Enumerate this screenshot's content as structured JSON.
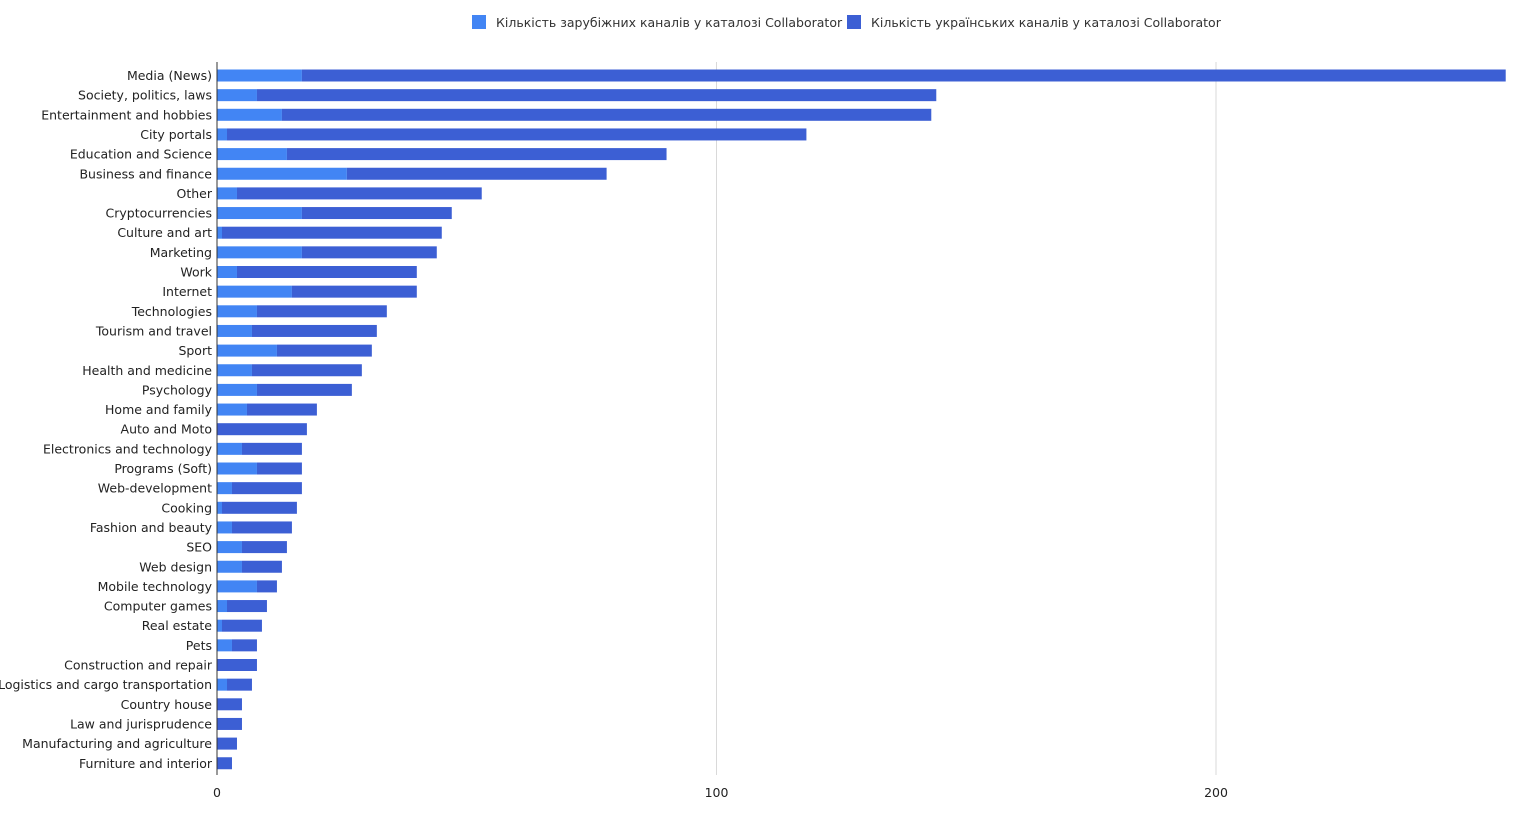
{
  "chart_data": {
    "type": "bar",
    "orientation": "horizontal",
    "stacked": true,
    "legend_position": "top",
    "grid": true,
    "xlim": [
      0,
      258
    ],
    "xticks": [
      0,
      100,
      200
    ],
    "categories": [
      "Media (News)",
      "Society, politics, laws",
      "Entertainment and hobbies",
      "City portals",
      "Education and Science",
      "Business and finance",
      "Other",
      "Cryptocurrencies",
      "Culture and art",
      "Marketing",
      "Work",
      "Internet",
      "Technologies",
      "Tourism and travel",
      "Sport",
      "Health and medicine",
      "Psychology",
      "Home and family",
      "Auto and Moto",
      "Electronics and technology",
      "Programs (Soft)",
      "Web-development",
      "Cooking",
      "Fashion and beauty",
      "SEO",
      "Web design",
      "Mobile technology",
      "Computer games",
      "Real estate",
      "Pets",
      "Construction and repair",
      "Logistics and cargo transportation",
      "Country house",
      "Law and jurisprudence",
      "Manufacturing and agriculture",
      "Furniture and interior"
    ],
    "series": [
      {
        "name": "Кількість зарубіжних каналів у каталозі Collaborator",
        "color": "#4285f4",
        "values": [
          17,
          8,
          13,
          2,
          14,
          26,
          4,
          17,
          1,
          17,
          4,
          15,
          8,
          7,
          12,
          7,
          8,
          6,
          0,
          5,
          8,
          3,
          1,
          3,
          5,
          5,
          8,
          2,
          1,
          3,
          0,
          2,
          0,
          0,
          0,
          0
        ]
      },
      {
        "name": "Кількість українських каналів у каталозі Collaborator",
        "color": "#3c5fd4",
        "values": [
          241,
          136,
          130,
          116,
          76,
          52,
          49,
          30,
          44,
          27,
          36,
          25,
          26,
          25,
          19,
          22,
          19,
          14,
          18,
          12,
          9,
          14,
          15,
          12,
          9,
          8,
          4,
          8,
          8,
          5,
          8,
          5,
          5,
          5,
          4,
          3
        ]
      }
    ]
  }
}
